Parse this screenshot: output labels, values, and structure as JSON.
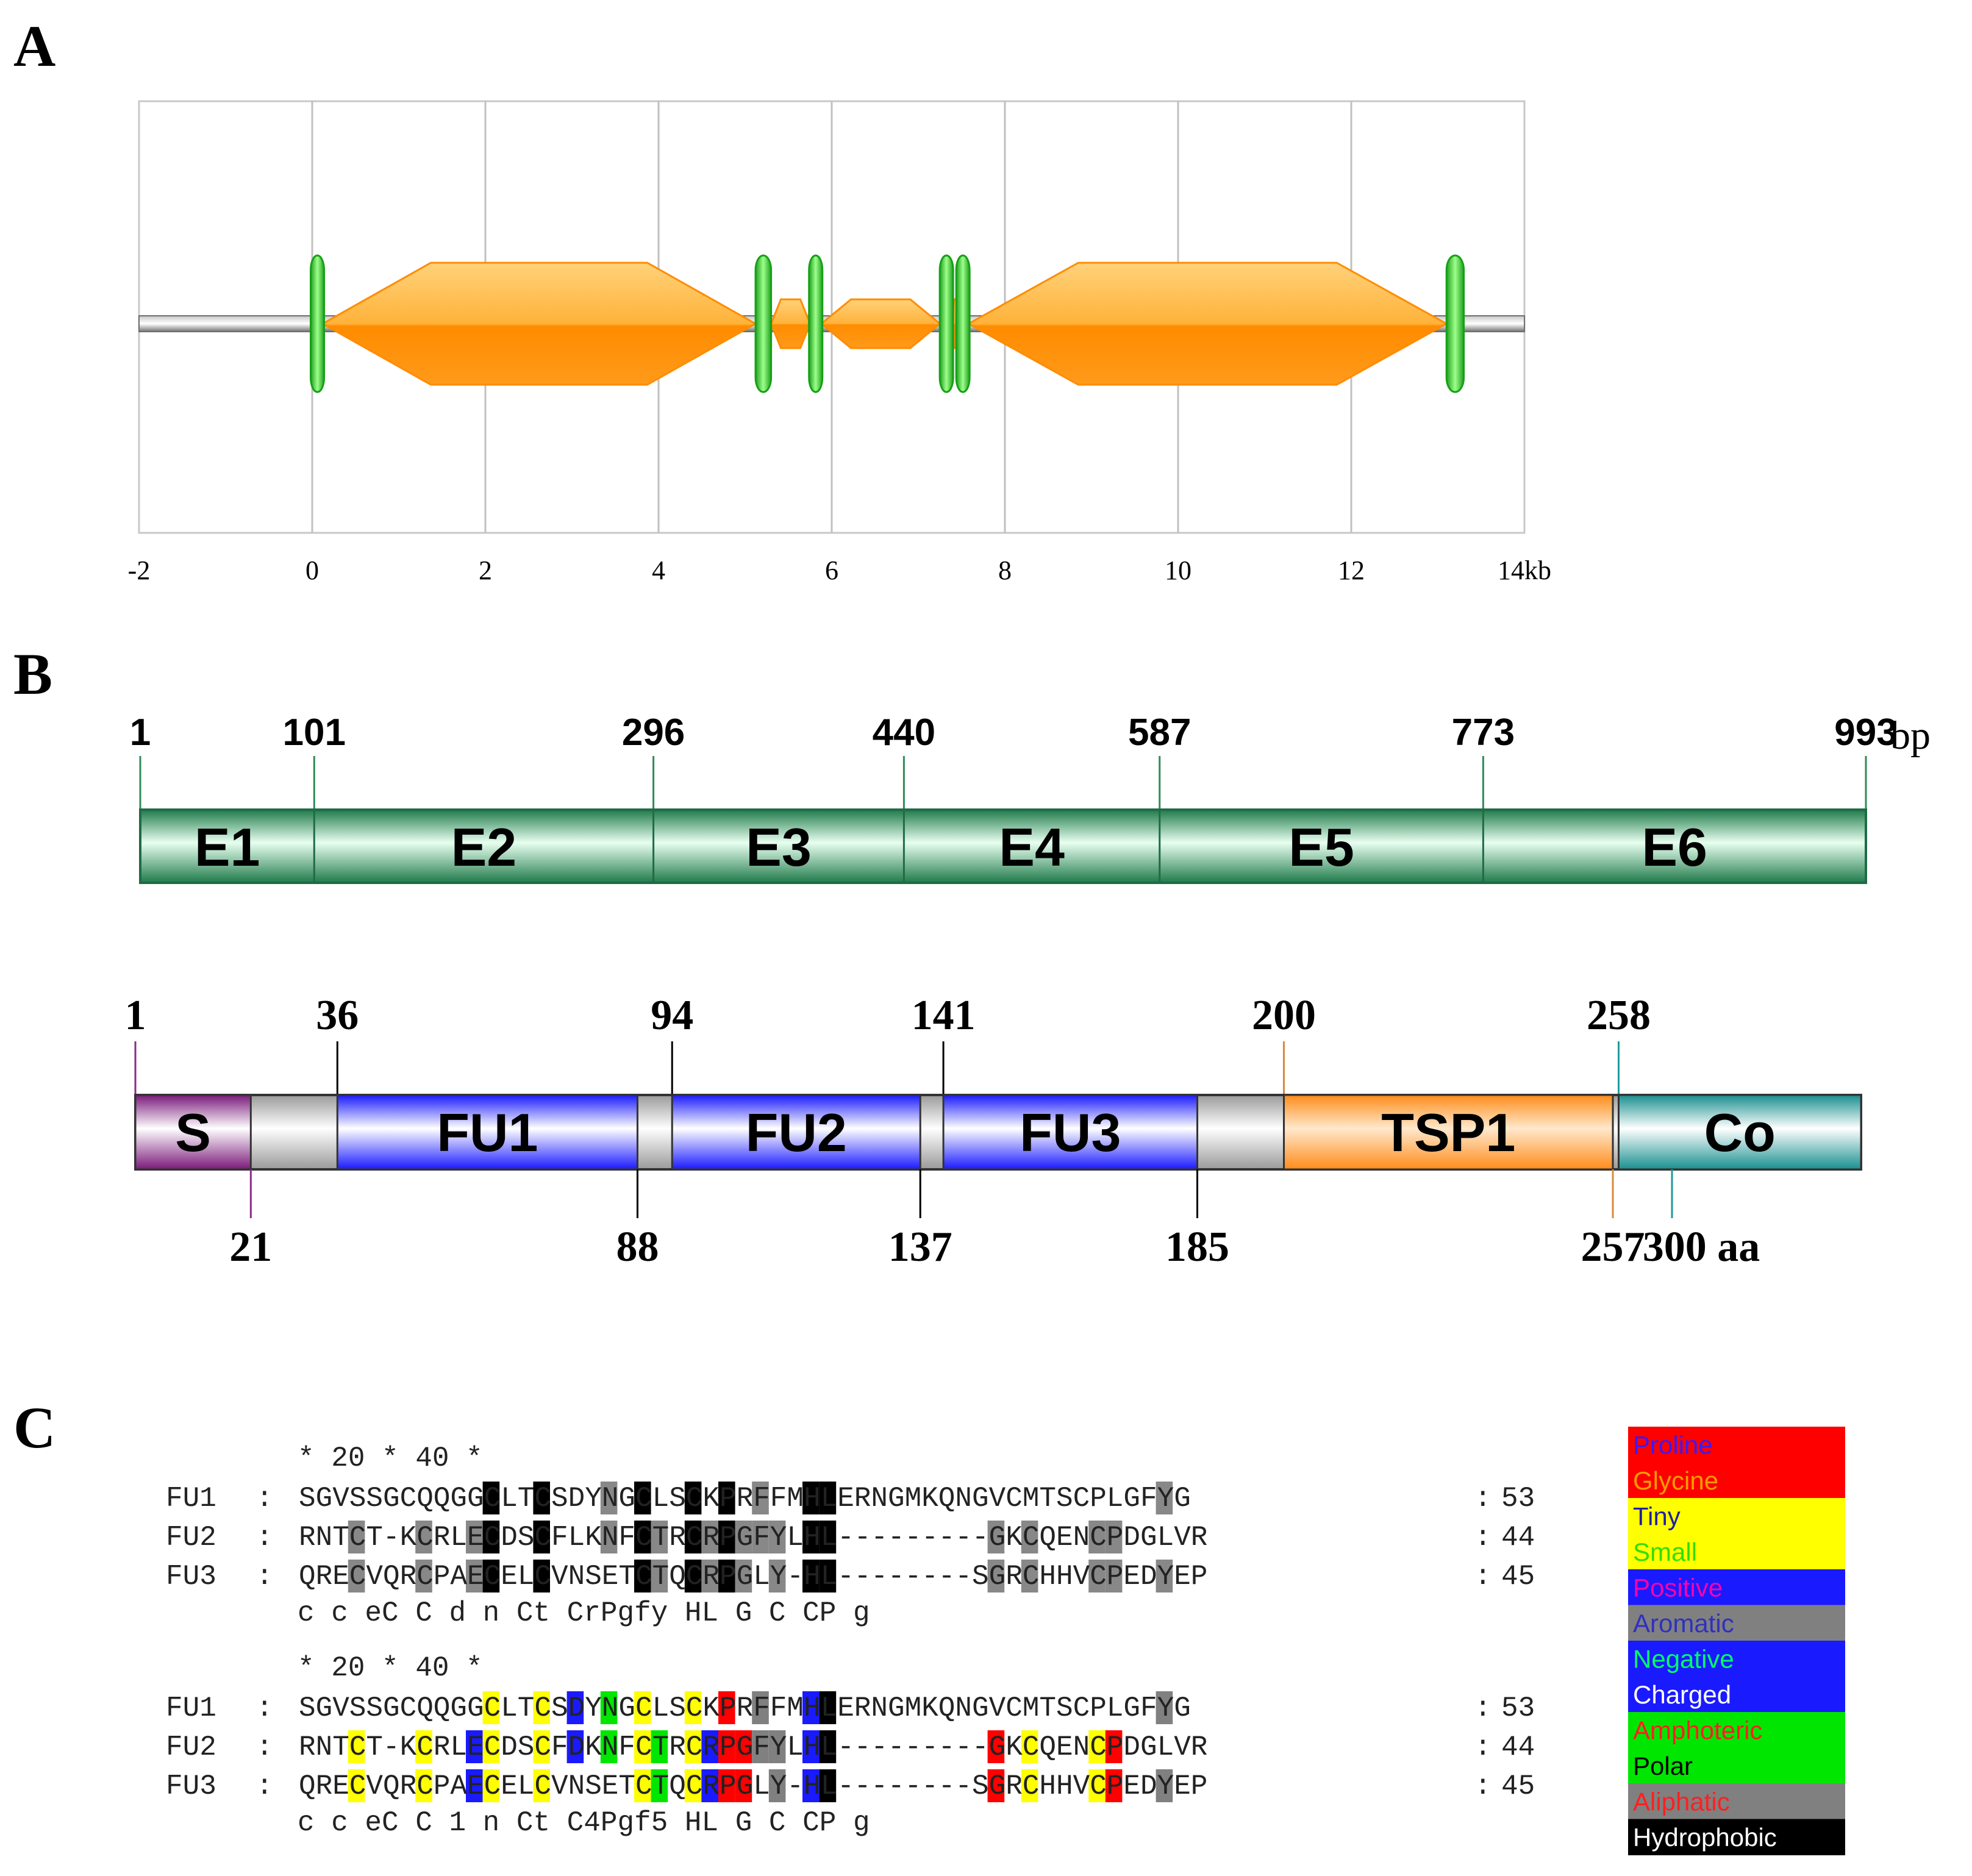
{
  "panels": {
    "a": "A",
    "b": "B",
    "c": "C"
  },
  "gene_structure": {
    "ticks": [
      "-2",
      "0",
      "2",
      "4",
      "6",
      "8",
      "10",
      "12",
      "14kb"
    ],
    "exons_kb": [
      [
        0.0,
        0.12
      ],
      [
        5.12,
        5.3
      ],
      [
        5.75,
        5.88
      ],
      [
        7.25,
        7.4
      ],
      [
        7.45,
        7.58
      ],
      [
        13.1,
        13.3
      ]
    ],
    "introns_kb": [
      [
        0.12,
        5.12
      ],
      [
        5.3,
        5.75
      ],
      [
        5.88,
        7.25
      ],
      [
        7.4,
        7.45
      ],
      [
        7.58,
        13.1
      ]
    ],
    "axis_range_kb": [
      -2,
      14
    ],
    "colors": {
      "exon": "#2ecc40",
      "intron": "#ff9a1a",
      "line": "#808080"
    }
  },
  "cds": {
    "positions": [
      "1",
      "101",
      "296",
      "440",
      "587",
      "773",
      "993"
    ],
    "positions_value": [
      1,
      101,
      296,
      440,
      587,
      773,
      993
    ],
    "unit": "bp",
    "exons": [
      "E1",
      "E2",
      "E3",
      "E4",
      "E5",
      "E6"
    ],
    "color": "#2e8b57"
  },
  "protein": {
    "length": 300,
    "unit_label": "300 aa",
    "top_labels": [
      "1",
      "36",
      "94",
      "141",
      "200",
      "258"
    ],
    "top_values": [
      1,
      36,
      94,
      141,
      200,
      258
    ],
    "bottom_labels": [
      "21",
      "88",
      "137",
      "185",
      "257"
    ],
    "bottom_values": [
      21,
      88,
      137,
      185,
      257
    ],
    "domains": [
      {
        "name": "S",
        "start": 1,
        "end": 21,
        "color": "#8b2a8b"
      },
      {
        "name": "FU1",
        "start": 36,
        "end": 88,
        "color": "#2020ff"
      },
      {
        "name": "FU2",
        "start": 94,
        "end": 137,
        "color": "#2020ff"
      },
      {
        "name": "FU3",
        "start": 141,
        "end": 185,
        "color": "#2020ff"
      },
      {
        "name": "TSP1",
        "start": 200,
        "end": 257,
        "color": "#ff9a2e"
      },
      {
        "name": "Co",
        "start": 258,
        "end": 300,
        "color": "#1f9a9a"
      }
    ]
  },
  "alignment": {
    "ruler1": "        *         20         *         40         *",
    "ruler2": "        *         20         *         40         *",
    "block1": [
      {
        "name": "FU1",
        "seq": "SGVSSGCQQGGCLTCSDYNGCLSCKPRFFMHLERNGMKQNGVCMTSCPLGFYG",
        "count": "53"
      },
      {
        "name": "FU2",
        "seq": "RNTCT-KCRLECDSCFLKNFCTRCRPGFYLHL---------GKCQENCPDGLVR",
        "count": "44"
      },
      {
        "name": "FU3",
        "seq": "QRECVQRCPAECELCVNSETCTQCRPGLY-HL--------SGRCHHVCPEDYEP",
        "count": "45"
      }
    ],
    "consensus1": "   c   c   eC  C  d n  Ct  CrPgfy  HL          G  C    CP  g",
    "block2": [
      {
        "name": "FU1",
        "seq": "SGVSSGCQQGGCLTCSDYNGCLSCKPRFFMHLERNGMKQNGVCMTSCPLGFYG",
        "count": "53"
      },
      {
        "name": "FU2",
        "seq": "RNTCT-KCRLECDSCFDKNFCTRCRPGFYLHL---------GKCQENCPDGLVR",
        "count": "44"
      },
      {
        "name": "FU3",
        "seq": "QRECVQRCPAECELCVNSETCTQCRPGLY-HL--------SGRCHHVCPEDYEP",
        "count": "45"
      }
    ],
    "consensus2": "   c   c   eC  C 1 n  Ct  C4Pgf5  HL          G  C    CP  g"
  },
  "legend": [
    {
      "label": "Proline",
      "bg": "#ff0000",
      "fg": "#3a1aff"
    },
    {
      "label": "Glycine",
      "bg": "#ff0000",
      "fg": "#ff9a00"
    },
    {
      "label": "Tiny",
      "bg": "#ffff00",
      "fg": "#2020a0"
    },
    {
      "label": "Small",
      "bg": "#ffff00",
      "fg": "#33dd00"
    },
    {
      "label": "Positive",
      "bg": "#1a1aff",
      "fg": "#ff00aa"
    },
    {
      "label": "Aromatic",
      "bg": "#808080",
      "fg": "#3030c0"
    },
    {
      "label": "Negative",
      "bg": "#1a1aff",
      "fg": "#00ff66"
    },
    {
      "label": "Charged",
      "bg": "#1a1aff",
      "fg": "#ffffff"
    },
    {
      "label": "Amphoteric",
      "bg": "#00e600",
      "fg": "#ff2020"
    },
    {
      "label": "Polar",
      "bg": "#00e600",
      "fg": "#000000"
    },
    {
      "label": "Aliphatic",
      "bg": "#808080",
      "fg": "#ff2020"
    },
    {
      "label": "Hydrophobic",
      "bg": "#000000",
      "fg": "#ffffff"
    }
  ]
}
